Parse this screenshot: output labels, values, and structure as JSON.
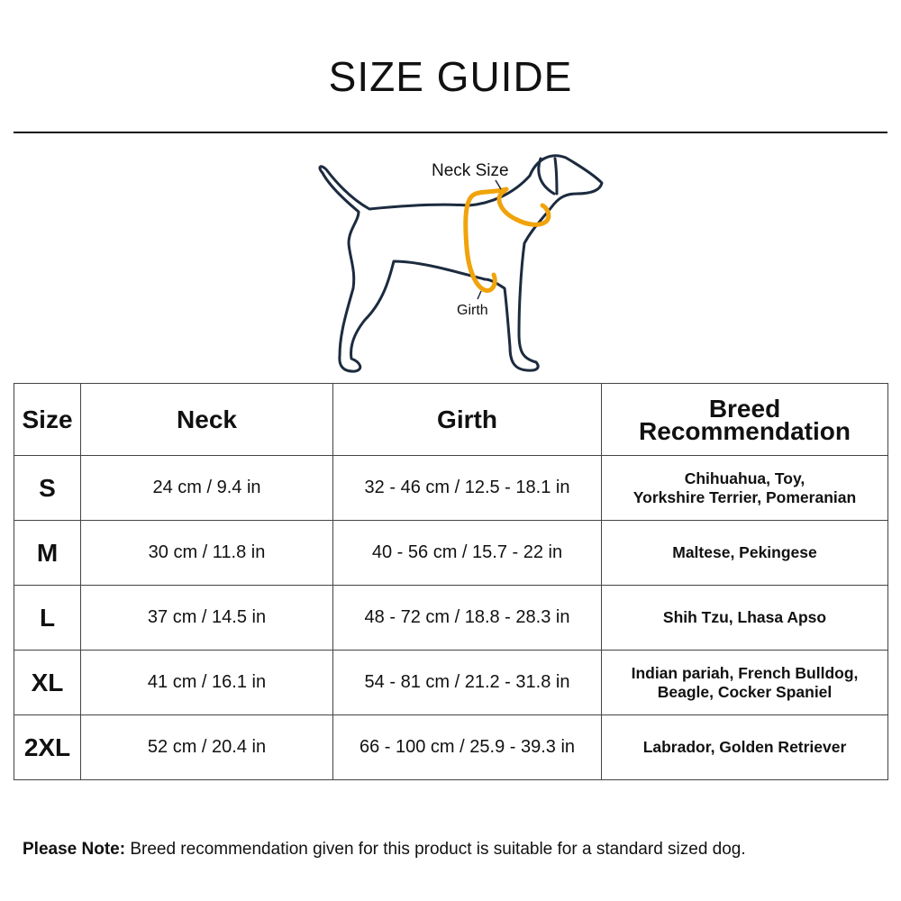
{
  "title": "SIZE GUIDE",
  "diagram": {
    "neck_label": "Neck Size",
    "girth_label": "Girth",
    "outline_color": "#1c2b3f",
    "measure_color": "#f0a30a"
  },
  "table": {
    "headers": [
      "Size",
      "Neck",
      "Girth",
      "Breed Recommendation"
    ],
    "rows": [
      {
        "size": "S",
        "neck": "24 cm / 9.4 in",
        "girth": "32 - 46 cm / 12.5 - 18.1 in",
        "breed": "Chihuahua, Toy,\nYorkshire Terrier, Pomeranian"
      },
      {
        "size": "M",
        "neck": "30 cm / 11.8 in",
        "girth": "40 - 56 cm / 15.7 - 22 in",
        "breed": "Maltese, Pekingese"
      },
      {
        "size": "L",
        "neck": "37 cm / 14.5 in",
        "girth": "48 - 72 cm / 18.8 - 28.3 in",
        "breed": "Shih Tzu, Lhasa Apso"
      },
      {
        "size": "XL",
        "neck": "41 cm / 16.1 in",
        "girth": "54 - 81 cm / 21.2 - 31.8 in",
        "breed": "Indian pariah, French Bulldog,\nBeagle, Cocker Spaniel"
      },
      {
        "size": "2XL",
        "neck": "52 cm / 20.4 in",
        "girth": "66 - 100 cm / 25.9 - 39.3 in",
        "breed": "Labrador, Golden Retriever"
      }
    ]
  },
  "note": {
    "label": "Please Note:",
    "text": " Breed recommendation given for this product is suitable for a standard sized dog."
  }
}
